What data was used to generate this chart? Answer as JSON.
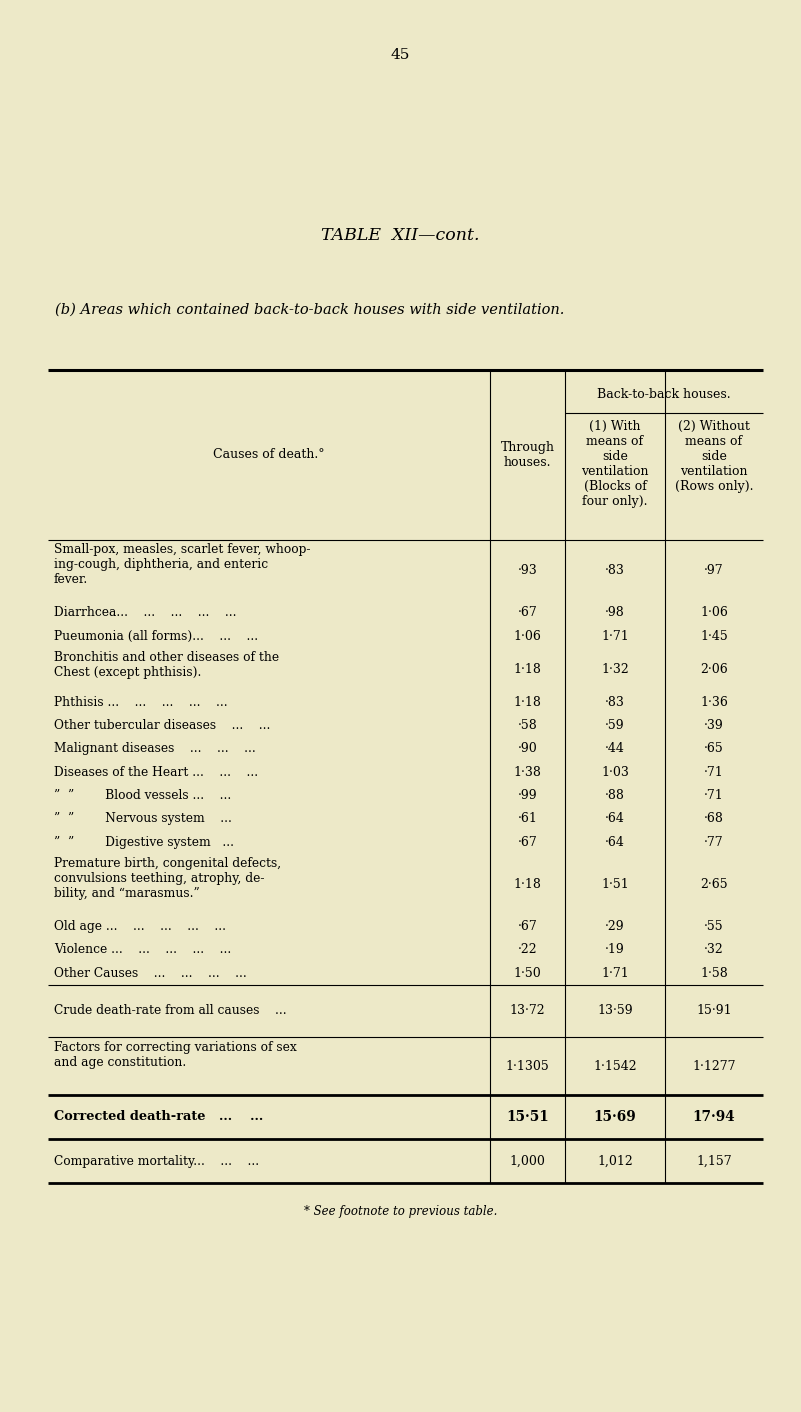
{
  "page_number": "45",
  "title": "Table XII—cont.",
  "subtitle": "(b) Areas which contained back-to-back houses with side ventilation.",
  "bg_color": "#ede9c8",
  "rows": [
    [
      "Small-pox, measles, scarlet fever, whoop-\ning-cough, diphtheria, and enteric\nfever.",
      "·93",
      "·83",
      "·97"
    ],
    [
      "Diarrhcea...    ...    ...    ...    ...",
      "·67",
      "·98",
      "1·06"
    ],
    [
      "Pueumonia (all forms)...    ...    ...",
      "1·06",
      "1·71",
      "1·45"
    ],
    [
      "Bronchitis and other diseases of the\nChest (except phthisis).",
      "1·18",
      "1·32",
      "2·06"
    ],
    [
      "Phthisis ...    ...    ...    ...    ...",
      "1·18",
      "·83",
      "1·36"
    ],
    [
      "Other tubercular diseases    ...    ...",
      "·58",
      "·59",
      "·39"
    ],
    [
      "Malignant diseases    ...    ...    ...",
      "·90",
      "·44",
      "·65"
    ],
    [
      "Diseases of the Heart ...    ...    ...",
      "1·38",
      "1·03",
      "·71"
    ],
    [
      "”  ”        Blood vessels ...    ...",
      "·99",
      "·88",
      "·71"
    ],
    [
      "”  ”        Nervous system    ...",
      "·61",
      "·64",
      "·68"
    ],
    [
      "”  ”        Digestive system   ...",
      "·67",
      "·64",
      "·77"
    ],
    [
      "Premature birth, congenital defects,\nconvulsions teething, atrophy, de-\nbility, and “marasmus.”",
      "1·18",
      "1·51",
      "2·65"
    ],
    [
      "Old age ...    ...    ...    ...    ...",
      "·67",
      "·29",
      "·55"
    ],
    [
      "Violence ...    ...    ...    ...    ...",
      "·22",
      "·19",
      "·32"
    ],
    [
      "Other Causes    ...    ...    ...    ...",
      "1·50",
      "1·71",
      "1·58"
    ]
  ],
  "crude_row": [
    "Crude death-rate from all causes    ...",
    "13·72",
    "13·59",
    "15·91"
  ],
  "factors_row": [
    "Factors for correcting variations of sex\nand age constitution.",
    "1·1305",
    "1·1542",
    "1·1277"
  ],
  "corrected_row": [
    "Corrected death-rate   ...    ...",
    "15·51",
    "15·69",
    "17·94"
  ],
  "comparative_row": [
    "Comparative mortality...    ...    ...",
    "1,000",
    "1,012",
    "1,157"
  ],
  "footnote": "* See footnote to previous table."
}
